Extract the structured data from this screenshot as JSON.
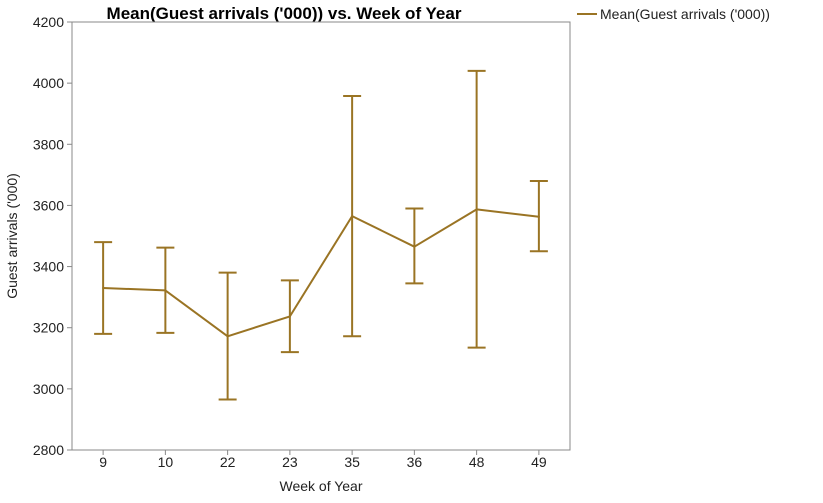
{
  "chart_data": {
    "type": "line",
    "title": "Mean(Guest arrivals ('000)) vs. Week of Year",
    "xlabel": "Week of Year",
    "ylabel": "Guest arrivals ('000)",
    "categories": [
      "9",
      "10",
      "22",
      "23",
      "35",
      "36",
      "48",
      "49"
    ],
    "ylim": [
      2800,
      4200
    ],
    "yticks": [
      "2800",
      "3000",
      "3200",
      "3400",
      "3600",
      "3800",
      "4000",
      "4200"
    ],
    "series": [
      {
        "name": "Mean(Guest arrivals ('000))",
        "color": "#9a7424",
        "values": [
          3330,
          3322,
          3172,
          3237,
          3565,
          3465,
          3587,
          3563
        ],
        "error_low": [
          3180,
          3183,
          2965,
          3120,
          3172,
          3345,
          3135,
          3450
        ],
        "error_high": [
          3480,
          3462,
          3380,
          3355,
          3958,
          3590,
          4040,
          3680
        ]
      }
    ],
    "legend_position": "top-right",
    "grid": false
  }
}
